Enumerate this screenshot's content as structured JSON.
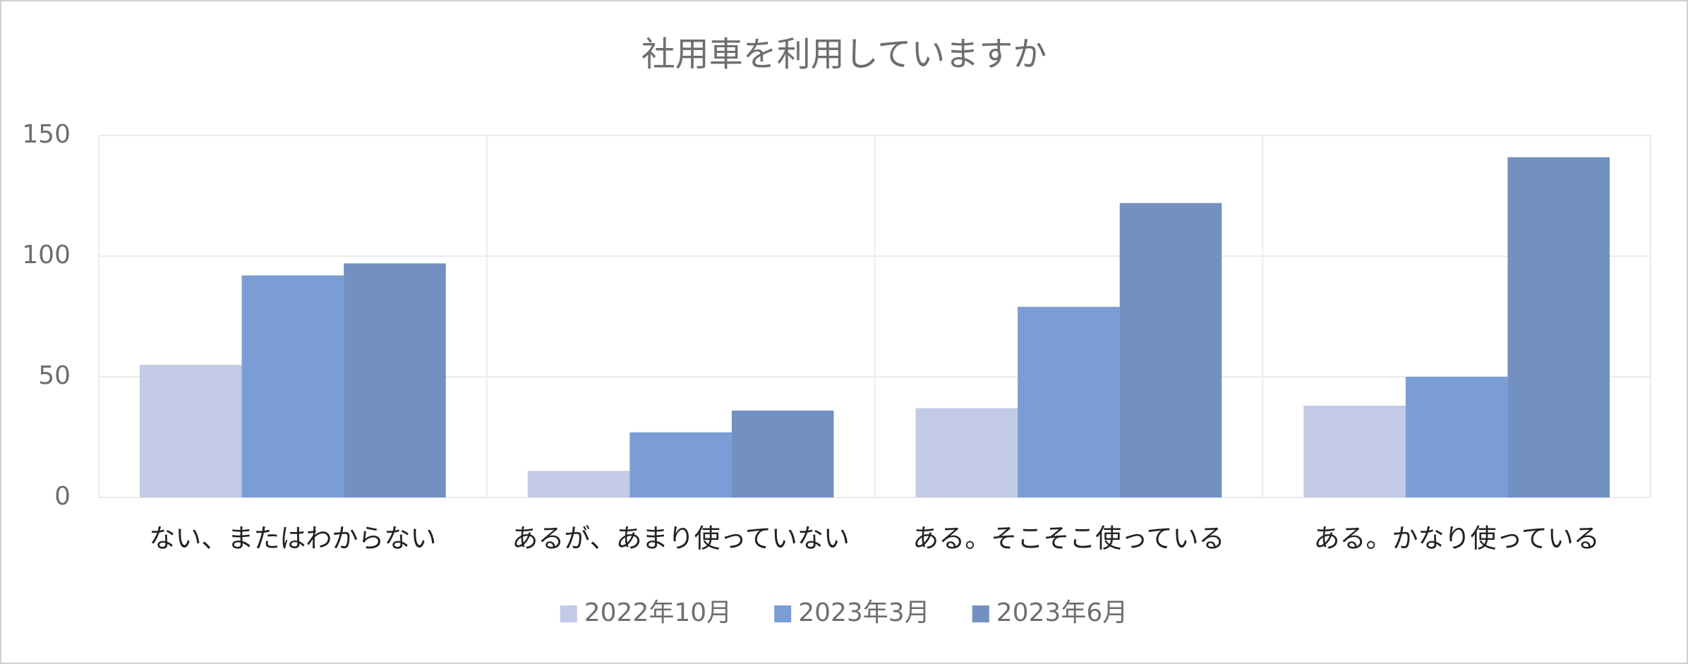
{
  "chart_data": {
    "type": "bar",
    "title": "社用車を利用していますか",
    "categories": [
      "ない、またはわからない",
      "あるが、あまり使っていない",
      "ある。そこそこ使っている",
      "ある。かなり使っている"
    ],
    "series": [
      {
        "name": "2022年10月",
        "color": "#c2cae6",
        "values": [
          55,
          11,
          37,
          38
        ]
      },
      {
        "name": "2023年3月",
        "color": "#7b9dd6",
        "values": [
          92,
          27,
          79,
          50
        ]
      },
      {
        "name": "2023年6月",
        "color": "#7290c0",
        "values": [
          97,
          36,
          122,
          141
        ]
      }
    ],
    "ylim": [
      0,
      150
    ],
    "yticks": [
      0,
      50,
      100,
      150
    ],
    "grid": true,
    "legend": "bottom"
  }
}
